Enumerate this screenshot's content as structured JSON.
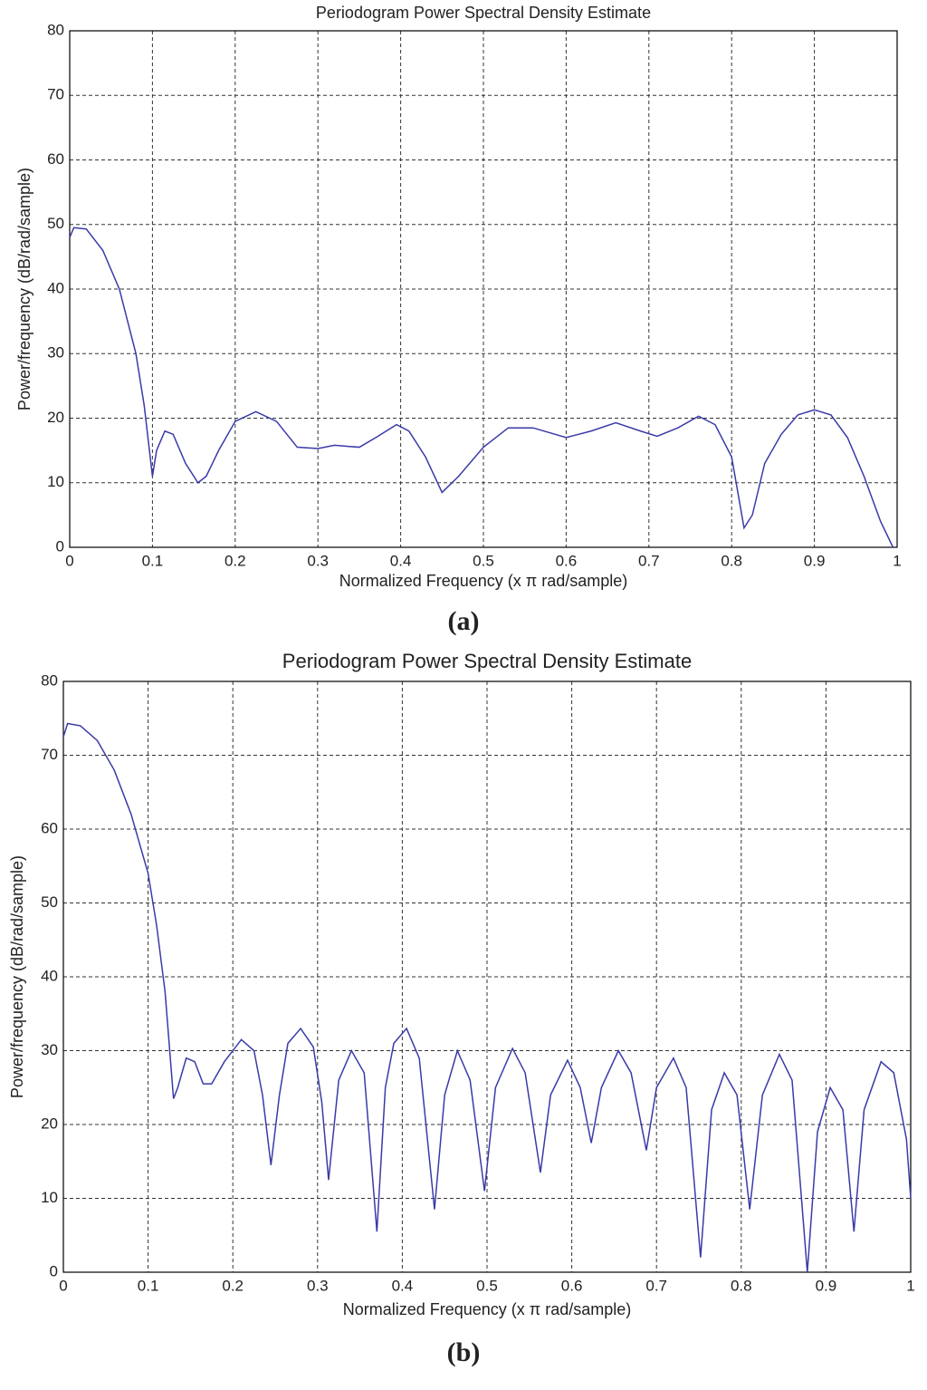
{
  "chart_data": [
    {
      "type": "line",
      "title": "Periodogram Power Spectral Density Estimate",
      "xlabel": "Normalized Frequency (x π rad/sample)",
      "ylabel": "Power/frequency (dB/rad/sample)",
      "caption": "(a)",
      "xlim": [
        0,
        1
      ],
      "ylim": [
        0,
        80
      ],
      "xticks": [
        0,
        0.1,
        0.2,
        0.3,
        0.4,
        0.5,
        0.6,
        0.7,
        0.8,
        0.9,
        1
      ],
      "yticks": [
        0,
        10,
        20,
        30,
        40,
        50,
        60,
        70,
        80
      ],
      "grid": true,
      "x": [
        0,
        0.005,
        0.02,
        0.04,
        0.06,
        0.08,
        0.09,
        0.1,
        0.105,
        0.115,
        0.125,
        0.14,
        0.155,
        0.165,
        0.18,
        0.2,
        0.225,
        0.25,
        0.275,
        0.3,
        0.32,
        0.35,
        0.37,
        0.395,
        0.41,
        0.43,
        0.45,
        0.47,
        0.5,
        0.53,
        0.56,
        0.6,
        0.63,
        0.66,
        0.69,
        0.71,
        0.735,
        0.76,
        0.78,
        0.8,
        0.815,
        0.825,
        0.84,
        0.86,
        0.88,
        0.9,
        0.92,
        0.94,
        0.96,
        0.98,
        0.995
      ],
      "series": [
        {
          "color": "#3a3aa8",
          "values": [
            48,
            49.5,
            49.3,
            46,
            40,
            30,
            22,
            11,
            15,
            18,
            17.5,
            13,
            10,
            11,
            15,
            19.5,
            21,
            19.5,
            15.5,
            15.3,
            15.8,
            15.5,
            17,
            19,
            18,
            14,
            8.5,
            11,
            15.5,
            18.5,
            18.5,
            17,
            18,
            19.3,
            18,
            17.2,
            18.5,
            20.3,
            19,
            14,
            3,
            5,
            13,
            17.5,
            20.5,
            21.3,
            20.5,
            17,
            11,
            4,
            0
          ]
        }
      ]
    },
    {
      "type": "line",
      "title": "Periodogram Power Spectral Density Estimate",
      "xlabel": "Normalized Frequency (x π rad/sample)",
      "ylabel": "Power/frequency (dB/rad/sample)",
      "caption": "(b)",
      "xlim": [
        0,
        1
      ],
      "ylim": [
        0,
        80
      ],
      "xticks": [
        0,
        0.1,
        0.2,
        0.3,
        0.4,
        0.5,
        0.6,
        0.7,
        0.8,
        0.9,
        1
      ],
      "yticks": [
        0,
        10,
        20,
        30,
        40,
        50,
        60,
        70,
        80
      ],
      "grid": true,
      "x": [
        0,
        0.005,
        0.02,
        0.04,
        0.06,
        0.08,
        0.1,
        0.11,
        0.12,
        0.13,
        0.135,
        0.145,
        0.155,
        0.165,
        0.175,
        0.19,
        0.21,
        0.225,
        0.235,
        0.245,
        0.255,
        0.265,
        0.28,
        0.295,
        0.305,
        0.313,
        0.325,
        0.34,
        0.355,
        0.37,
        0.38,
        0.39,
        0.405,
        0.42,
        0.438,
        0.45,
        0.465,
        0.48,
        0.497,
        0.51,
        0.53,
        0.545,
        0.563,
        0.575,
        0.595,
        0.61,
        0.623,
        0.635,
        0.655,
        0.67,
        0.688,
        0.7,
        0.72,
        0.735,
        0.752,
        0.765,
        0.78,
        0.795,
        0.81,
        0.825,
        0.845,
        0.86,
        0.878,
        0.89,
        0.905,
        0.92,
        0.933,
        0.945,
        0.965,
        0.98,
        0.995,
        1
      ],
      "series": [
        {
          "color": "#3a3aa8",
          "values": [
            72.5,
            74.3,
            74,
            72,
            68,
            62,
            54,
            47,
            38,
            23.5,
            25,
            29,
            28.5,
            25.5,
            25.5,
            28.5,
            31.5,
            30,
            24,
            14.5,
            24,
            31,
            33,
            30.5,
            23,
            12.5,
            26,
            30,
            27,
            5.5,
            25,
            31,
            33,
            29,
            8.5,
            24,
            30,
            26,
            11,
            25,
            30.3,
            27,
            13.5,
            24,
            28.7,
            25,
            17.5,
            25,
            30,
            27,
            16.5,
            25,
            29,
            25,
            2,
            22,
            27,
            24,
            8.5,
            24,
            29.5,
            26,
            0,
            19,
            25,
            22,
            5.5,
            22,
            28.5,
            27,
            18,
            10
          ]
        }
      ]
    }
  ]
}
